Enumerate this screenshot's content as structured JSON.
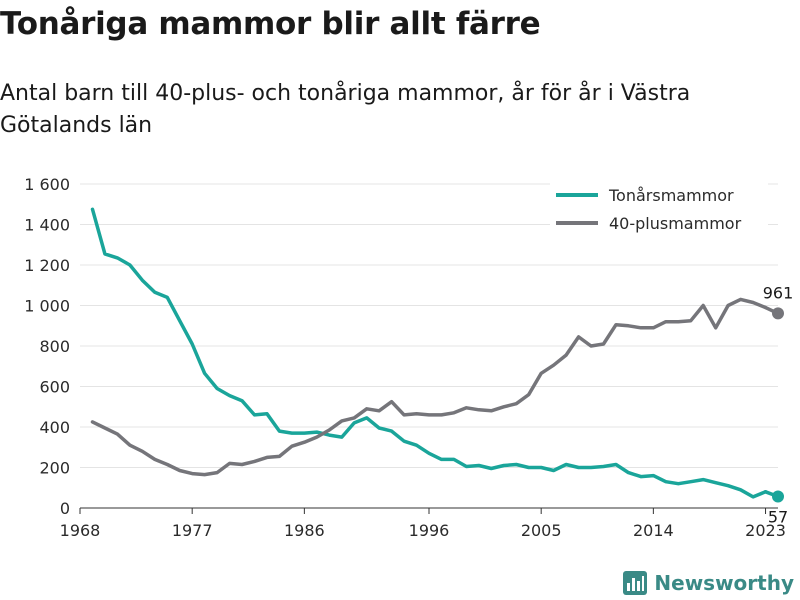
{
  "title": "Tonåriga mammor blir allt färre",
  "subtitle": "Antal barn till 40-plus- och tonåriga mammor, år för år i Västra Götalands län",
  "logo": {
    "text": "Newsworthy",
    "color": "#3a8a86"
  },
  "chart_data": {
    "type": "line",
    "x": [
      1969,
      1970,
      1971,
      1972,
      1973,
      1974,
      1975,
      1976,
      1977,
      1978,
      1979,
      1980,
      1981,
      1982,
      1983,
      1984,
      1985,
      1986,
      1987,
      1988,
      1989,
      1990,
      1991,
      1992,
      1993,
      1994,
      1995,
      1996,
      1997,
      1998,
      1999,
      2000,
      2001,
      2002,
      2003,
      2004,
      2005,
      2006,
      2007,
      2008,
      2009,
      2010,
      2011,
      2012,
      2013,
      2014,
      2015,
      2016,
      2017,
      2018,
      2019,
      2020,
      2021,
      2022,
      2023
    ],
    "series": [
      {
        "name": "Tonårsmammor",
        "color": "#1aa59a",
        "values": [
          1475,
          1255,
          1235,
          1200,
          1125,
          1065,
          1040,
          925,
          810,
          665,
          590,
          555,
          530,
          460,
          465,
          380,
          370,
          370,
          375,
          360,
          350,
          420,
          445,
          395,
          380,
          330,
          310,
          270,
          240,
          240,
          205,
          210,
          195,
          210,
          215,
          200,
          200,
          185,
          215,
          200,
          200,
          205,
          215,
          175,
          155,
          160,
          130,
          120,
          130,
          140,
          125,
          110,
          90,
          55,
          80
        ]
      },
      {
        "name": "40-plusmammor",
        "color": "#75757a",
        "values": [
          425,
          395,
          365,
          310,
          280,
          240,
          215,
          185,
          170,
          165,
          175,
          220,
          215,
          230,
          250,
          255,
          305,
          325,
          350,
          385,
          430,
          445,
          490,
          480,
          525,
          460,
          465,
          460,
          460,
          470,
          495,
          485,
          480,
          500,
          515,
          560,
          665,
          705,
          755,
          845,
          800,
          810,
          905,
          900,
          890,
          890,
          920,
          920,
          925,
          1000,
          890,
          1000,
          1030,
          1015,
          990
        ]
      }
    ],
    "end_labels": [
      {
        "series": "40-plusmammor",
        "x": 2024,
        "y": 961,
        "text": "961"
      },
      {
        "series": "Tonårsmammor",
        "x": 2024,
        "y": 57,
        "text": "57"
      }
    ],
    "xticks": [
      "1968",
      "1977",
      "1986",
      "1996",
      "2005",
      "2014",
      "2023"
    ],
    "xtick_values": [
      1968,
      1977,
      1986,
      1996,
      2005,
      2014,
      2023
    ],
    "yticks": [
      "0",
      "200",
      "400",
      "600",
      "800",
      "1 000",
      "1 200",
      "1 400",
      "1 600"
    ],
    "ytick_values": [
      0,
      200,
      400,
      600,
      800,
      1000,
      1200,
      1400,
      1600
    ],
    "xlim": [
      1968,
      2024
    ],
    "ylim": [
      0,
      1600
    ],
    "xlabel": "",
    "ylabel": "",
    "grid": "horizontal",
    "legend_position": "top-right"
  }
}
